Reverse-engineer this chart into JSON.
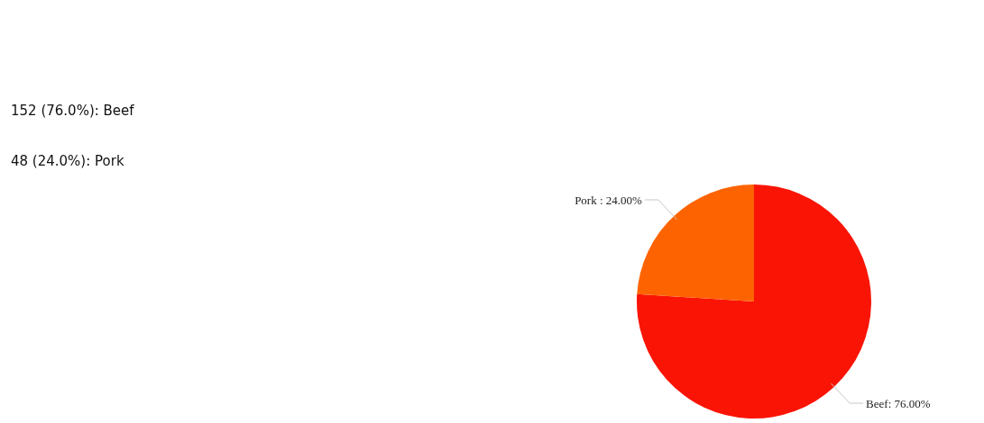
{
  "chart_data": {
    "type": "pie",
    "categories": [
      "Beef",
      "Pork"
    ],
    "values": [
      76,
      24
    ],
    "colors": [
      "#fa1405",
      "#fd6401"
    ],
    "value_labels": [
      ": 76.00%",
      " : 24.00%"
    ],
    "annotations": [
      "152 (76.0%): Beef",
      "48 (24.0%): Pork"
    ],
    "legend": false
  }
}
